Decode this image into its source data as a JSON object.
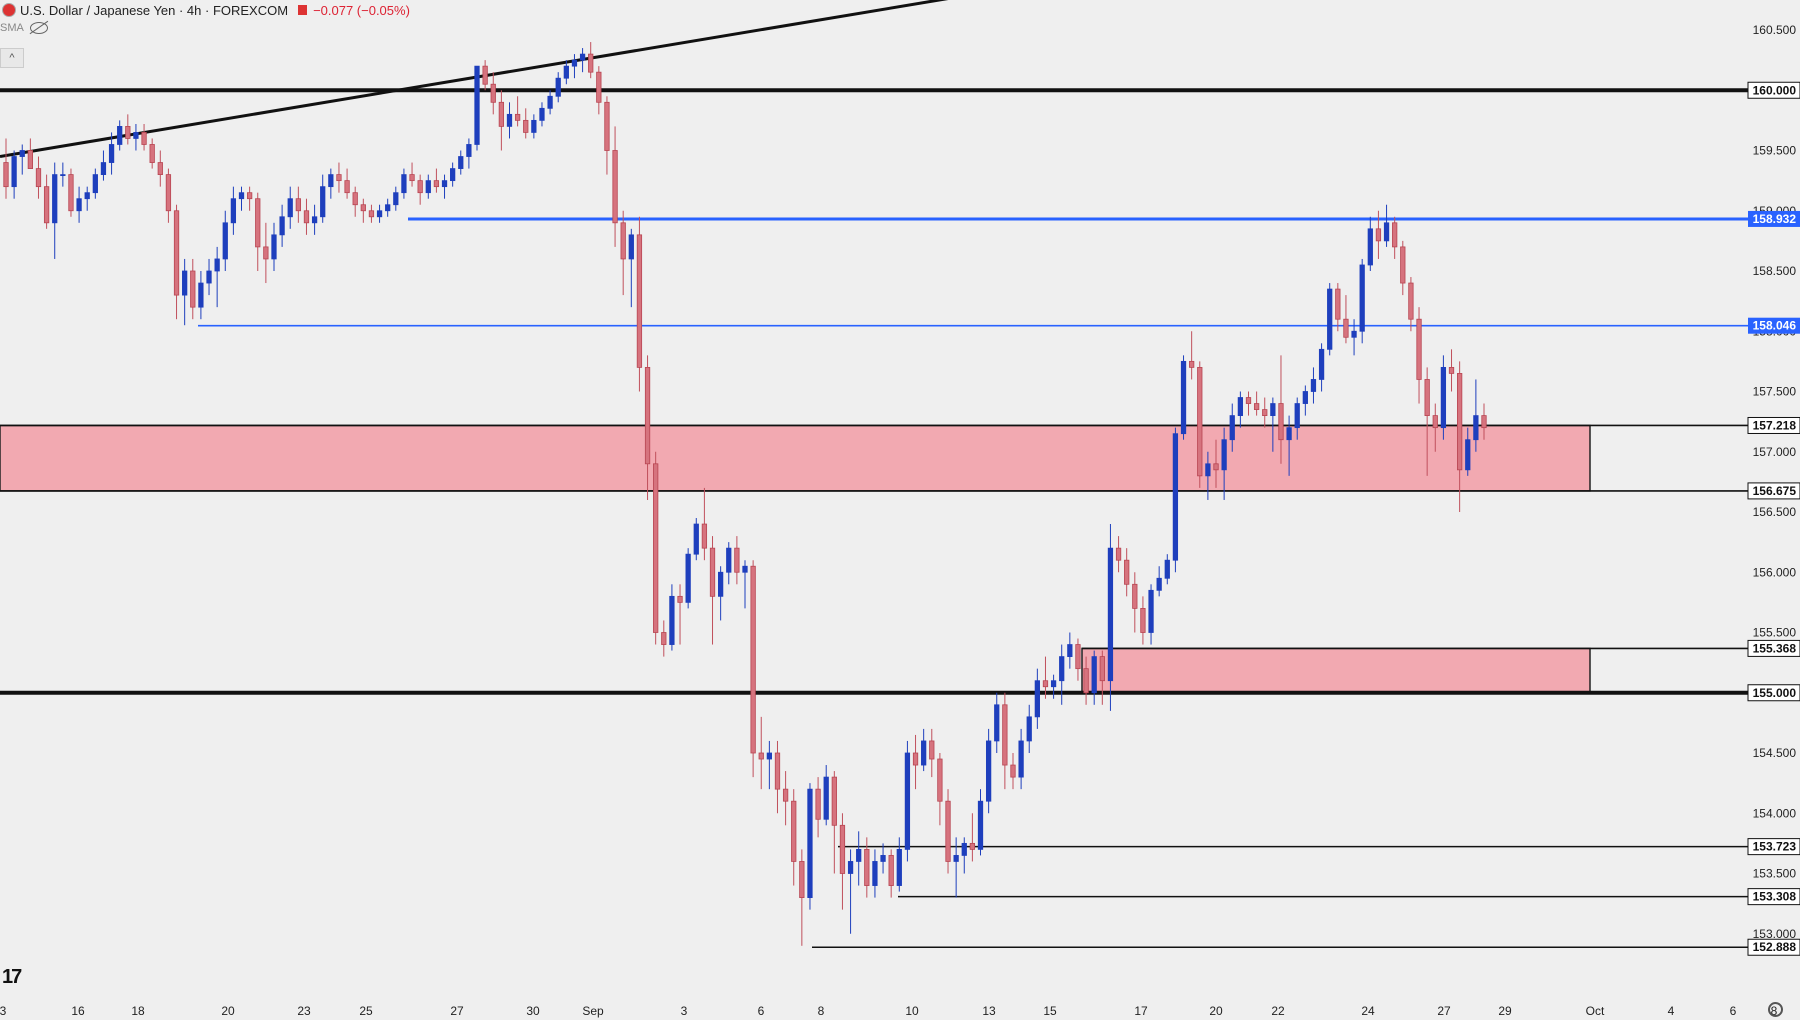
{
  "header": {
    "symbol_title": "U.S. Dollar / Japanese Yen · 4h · FOREXCOM",
    "change": "−0.077 (−0.05%)",
    "indicator": "SMA",
    "collapse_icon": "chevron-up-icon"
  },
  "colors": {
    "up": "#1e3fbd",
    "down": "#d6737e",
    "zone": "#f2a9b1",
    "blue_level": "#2962ff",
    "black_level": "#111111"
  },
  "chart_data": {
    "type": "candlestick",
    "title": "U.S. Dollar / Japanese Yen · 4h · FOREXCOM",
    "ylim": [
      152.6,
      160.8
    ],
    "price_axis_ticks": [
      "160.500",
      "160.000",
      "159.500",
      "159.000",
      "158.500",
      "158.000",
      "157.500",
      "157.000",
      "156.500",
      "156.000",
      "155.500",
      "155.000",
      "154.500",
      "154.000",
      "153.500",
      "153.000"
    ],
    "time_axis_labels": [
      "3",
      "16",
      "18",
      "20",
      "23",
      "25",
      "27",
      "30",
      "Sep",
      "3",
      "6",
      "8",
      "10",
      "13",
      "15",
      "17",
      "20",
      "22",
      "24",
      "27",
      "29",
      "Oct",
      "4",
      "6",
      "8"
    ],
    "levels": [
      {
        "price": 160.0,
        "label": "160.000",
        "style": "black"
      },
      {
        "price": 158.932,
        "label": "158.932",
        "style": "blue"
      },
      {
        "price": 158.046,
        "label": "158.046",
        "style": "blue"
      },
      {
        "price": 157.218,
        "label": "157.218",
        "style": "black"
      },
      {
        "price": 156.675,
        "label": "156.675",
        "style": "black"
      },
      {
        "price": 155.368,
        "label": "155.368",
        "style": "black"
      },
      {
        "price": 155.0,
        "label": "155.000",
        "style": "black"
      },
      {
        "price": 153.723,
        "label": "153.723",
        "style": "black"
      },
      {
        "price": 153.308,
        "label": "153.308",
        "style": "black"
      },
      {
        "price": 152.888,
        "label": "152.888",
        "style": "black"
      }
    ],
    "zones": [
      {
        "top": 157.218,
        "bottom": 156.675
      },
      {
        "top": 155.368,
        "bottom": 155.0
      }
    ],
    "trendline": {
      "from": 159.45,
      "to": 160.92
    },
    "candles": [
      [
        159.4,
        159.6,
        159.1,
        159.2
      ],
      [
        159.2,
        159.5,
        159.1,
        159.45
      ],
      [
        159.45,
        159.55,
        159.3,
        159.5
      ],
      [
        159.5,
        159.6,
        159.4,
        159.35
      ],
      [
        159.35,
        159.45,
        159.1,
        159.2
      ],
      [
        159.2,
        159.3,
        158.85,
        158.9
      ],
      [
        158.9,
        159.4,
        158.6,
        159.3
      ],
      [
        159.3,
        159.4,
        159.2,
        159.3
      ],
      [
        159.3,
        159.35,
        158.95,
        159.0
      ],
      [
        159.0,
        159.2,
        158.9,
        159.1
      ],
      [
        159.1,
        159.2,
        159.0,
        159.15
      ],
      [
        159.15,
        159.35,
        159.1,
        159.3
      ],
      [
        159.3,
        159.5,
        159.25,
        159.4
      ],
      [
        159.4,
        159.65,
        159.3,
        159.55
      ],
      [
        159.55,
        159.75,
        159.5,
        159.7
      ],
      [
        159.7,
        159.8,
        159.55,
        159.6
      ],
      [
        159.6,
        159.72,
        159.5,
        159.65
      ],
      [
        159.65,
        159.72,
        159.5,
        159.55
      ],
      [
        159.55,
        159.6,
        159.35,
        159.4
      ],
      [
        159.4,
        159.5,
        159.2,
        159.3
      ],
      [
        159.3,
        159.35,
        158.9,
        159.0
      ],
      [
        159.0,
        159.05,
        158.1,
        158.3
      ],
      [
        158.3,
        158.6,
        158.05,
        158.5
      ],
      [
        158.5,
        158.6,
        158.1,
        158.2
      ],
      [
        158.2,
        158.5,
        158.1,
        158.4
      ],
      [
        158.4,
        158.6,
        158.3,
        158.5
      ],
      [
        158.5,
        158.7,
        158.2,
        158.6
      ],
      [
        158.6,
        159.0,
        158.5,
        158.9
      ],
      [
        158.9,
        159.2,
        158.8,
        159.1
      ],
      [
        159.1,
        159.2,
        159.0,
        159.15
      ],
      [
        159.15,
        159.2,
        159.0,
        159.1
      ],
      [
        159.1,
        159.15,
        158.5,
        158.7
      ],
      [
        158.7,
        158.9,
        158.4,
        158.6
      ],
      [
        158.6,
        158.9,
        158.5,
        158.8
      ],
      [
        158.8,
        159.05,
        158.7,
        158.95
      ],
      [
        158.95,
        159.2,
        158.85,
        159.1
      ],
      [
        159.1,
        159.2,
        158.9,
        159.0
      ],
      [
        159.0,
        159.1,
        158.8,
        158.9
      ],
      [
        158.9,
        159.05,
        158.8,
        158.95
      ],
      [
        158.95,
        159.3,
        158.9,
        159.2
      ],
      [
        159.2,
        159.35,
        159.1,
        159.3
      ],
      [
        159.3,
        159.4,
        159.15,
        159.25
      ],
      [
        159.25,
        159.35,
        159.1,
        159.15
      ],
      [
        159.15,
        159.2,
        158.95,
        159.05
      ],
      [
        159.05,
        159.1,
        158.9,
        159.0
      ],
      [
        159.0,
        159.05,
        158.9,
        158.95
      ],
      [
        158.95,
        159.05,
        158.9,
        159.0
      ],
      [
        159.0,
        159.1,
        158.95,
        159.05
      ],
      [
        159.05,
        159.2,
        159.0,
        159.15
      ],
      [
        159.15,
        159.35,
        159.1,
        159.3
      ],
      [
        159.3,
        159.4,
        159.2,
        159.25
      ],
      [
        159.25,
        159.3,
        159.05,
        159.15
      ],
      [
        159.15,
        159.3,
        159.1,
        159.25
      ],
      [
        159.25,
        159.35,
        159.15,
        159.2
      ],
      [
        159.2,
        159.3,
        159.1,
        159.25
      ],
      [
        159.25,
        159.4,
        159.2,
        159.35
      ],
      [
        159.35,
        159.5,
        159.3,
        159.45
      ],
      [
        159.45,
        159.6,
        159.35,
        159.55
      ],
      [
        159.55,
        160.2,
        159.5,
        160.2
      ],
      [
        160.2,
        160.25,
        160.0,
        160.05
      ],
      [
        160.05,
        160.15,
        159.8,
        159.9
      ],
      [
        159.9,
        160.0,
        159.5,
        159.7
      ],
      [
        159.7,
        159.9,
        159.6,
        159.8
      ],
      [
        159.8,
        159.95,
        159.7,
        159.75
      ],
      [
        159.75,
        159.85,
        159.6,
        159.65
      ],
      [
        159.65,
        159.8,
        159.6,
        159.75
      ],
      [
        159.75,
        159.9,
        159.7,
        159.85
      ],
      [
        159.85,
        160.0,
        159.8,
        159.95
      ],
      [
        159.95,
        160.15,
        159.9,
        160.1
      ],
      [
        160.1,
        160.25,
        160.05,
        160.2
      ],
      [
        160.2,
        160.3,
        160.1,
        160.25
      ],
      [
        160.25,
        160.35,
        160.15,
        160.3
      ],
      [
        160.3,
        160.4,
        160.1,
        160.15
      ],
      [
        160.15,
        160.2,
        159.8,
        159.9
      ],
      [
        159.9,
        159.95,
        159.3,
        159.5
      ],
      [
        159.5,
        159.7,
        158.7,
        158.9
      ],
      [
        158.9,
        159.0,
        158.3,
        158.6
      ],
      [
        158.6,
        158.85,
        158.2,
        158.8
      ],
      [
        158.8,
        158.95,
        157.5,
        157.7
      ],
      [
        157.7,
        157.8,
        156.6,
        156.9
      ],
      [
        156.9,
        157.0,
        155.4,
        155.5
      ],
      [
        155.5,
        155.6,
        155.3,
        155.4
      ],
      [
        155.4,
        155.9,
        155.35,
        155.8
      ],
      [
        155.8,
        155.9,
        155.4,
        155.75
      ],
      [
        155.75,
        156.2,
        155.7,
        156.15
      ],
      [
        156.15,
        156.45,
        156.1,
        156.4
      ],
      [
        156.4,
        156.7,
        156.1,
        156.2
      ],
      [
        156.2,
        156.3,
        155.4,
        155.8
      ],
      [
        155.8,
        156.05,
        155.6,
        156.0
      ],
      [
        156.0,
        156.25,
        155.9,
        156.2
      ],
      [
        156.2,
        156.3,
        155.9,
        156.0
      ],
      [
        156.0,
        156.1,
        155.7,
        156.05
      ],
      [
        156.05,
        156.1,
        154.3,
        154.5
      ],
      [
        154.5,
        154.8,
        154.2,
        154.45
      ],
      [
        154.45,
        154.6,
        154.2,
        154.5
      ],
      [
        154.5,
        154.6,
        154.0,
        154.2
      ],
      [
        154.2,
        154.35,
        153.9,
        154.1
      ],
      [
        154.1,
        154.2,
        153.4,
        153.6
      ],
      [
        153.6,
        153.7,
        152.9,
        153.3
      ],
      [
        153.3,
        154.25,
        153.2,
        154.2
      ],
      [
        154.2,
        154.3,
        153.8,
        153.95
      ],
      [
        153.95,
        154.4,
        153.9,
        154.3
      ],
      [
        154.3,
        154.35,
        153.5,
        153.9
      ],
      [
        153.9,
        154.0,
        153.2,
        153.5
      ],
      [
        153.5,
        153.7,
        153.0,
        153.6
      ],
      [
        153.6,
        153.85,
        153.4,
        153.7
      ],
      [
        153.7,
        153.8,
        153.3,
        153.4
      ],
      [
        153.4,
        153.7,
        153.3,
        153.6
      ],
      [
        153.6,
        153.75,
        153.5,
        153.65
      ],
      [
        153.65,
        153.7,
        153.3,
        153.4
      ],
      [
        153.4,
        153.8,
        153.35,
        153.7
      ],
      [
        153.7,
        154.6,
        153.6,
        154.5
      ],
      [
        154.5,
        154.65,
        154.2,
        154.4
      ],
      [
        154.4,
        154.7,
        154.35,
        154.6
      ],
      [
        154.6,
        154.7,
        154.3,
        154.45
      ],
      [
        154.45,
        154.5,
        153.9,
        154.1
      ],
      [
        154.1,
        154.2,
        153.5,
        153.6
      ],
      [
        153.6,
        153.8,
        153.3,
        153.65
      ],
      [
        153.65,
        153.8,
        153.5,
        153.75
      ],
      [
        153.75,
        154.0,
        153.6,
        153.7
      ],
      [
        153.7,
        154.2,
        153.65,
        154.1
      ],
      [
        154.1,
        154.7,
        154.0,
        154.6
      ],
      [
        154.6,
        155.0,
        154.5,
        154.9
      ],
      [
        154.9,
        155.0,
        154.2,
        154.4
      ],
      [
        154.4,
        154.5,
        154.2,
        154.3
      ],
      [
        154.3,
        154.7,
        154.2,
        154.6
      ],
      [
        154.6,
        154.9,
        154.5,
        154.8
      ],
      [
        154.8,
        155.2,
        154.7,
        155.1
      ],
      [
        155.1,
        155.3,
        154.95,
        155.05
      ],
      [
        155.05,
        155.15,
        154.95,
        155.1
      ],
      [
        155.1,
        155.4,
        154.9,
        155.3
      ],
      [
        155.3,
        155.5,
        155.2,
        155.4
      ],
      [
        155.4,
        155.45,
        155.1,
        155.2
      ],
      [
        155.2,
        155.3,
        154.9,
        155.0
      ],
      [
        155.0,
        155.35,
        154.9,
        155.3
      ],
      [
        155.3,
        155.35,
        154.9,
        155.1
      ],
      [
        155.1,
        156.4,
        154.85,
        156.2
      ],
      [
        156.2,
        156.3,
        156.0,
        156.1
      ],
      [
        156.1,
        156.2,
        155.8,
        155.9
      ],
      [
        155.9,
        156.0,
        155.5,
        155.7
      ],
      [
        155.7,
        155.8,
        155.4,
        155.5
      ],
      [
        155.5,
        155.9,
        155.4,
        155.85
      ],
      [
        155.85,
        156.05,
        155.8,
        155.95
      ],
      [
        155.95,
        156.15,
        155.9,
        156.1
      ],
      [
        156.1,
        157.2,
        156.0,
        157.15
      ],
      [
        157.15,
        157.8,
        157.1,
        157.75
      ],
      [
        157.75,
        158.0,
        157.6,
        157.7
      ],
      [
        157.7,
        157.75,
        156.7,
        156.8
      ],
      [
        156.8,
        157.0,
        156.6,
        156.9
      ],
      [
        156.9,
        157.1,
        156.7,
        156.85
      ],
      [
        156.85,
        157.2,
        156.6,
        157.1
      ],
      [
        157.1,
        157.4,
        157.0,
        157.3
      ],
      [
        157.3,
        157.5,
        157.2,
        157.45
      ],
      [
        157.45,
        157.5,
        157.3,
        157.4
      ],
      [
        157.4,
        157.5,
        157.3,
        157.35
      ],
      [
        157.35,
        157.45,
        157.2,
        157.3
      ],
      [
        157.3,
        157.45,
        157.0,
        157.4
      ],
      [
        157.4,
        157.8,
        156.9,
        157.1
      ],
      [
        157.1,
        157.3,
        156.8,
        157.2
      ],
      [
        157.2,
        157.45,
        157.1,
        157.4
      ],
      [
        157.4,
        157.55,
        157.3,
        157.5
      ],
      [
        157.5,
        157.7,
        157.4,
        157.6
      ],
      [
        157.6,
        157.9,
        157.5,
        157.85
      ],
      [
        157.85,
        158.4,
        157.8,
        158.35
      ],
      [
        158.35,
        158.4,
        158.0,
        158.1
      ],
      [
        158.1,
        158.3,
        157.9,
        157.95
      ],
      [
        157.95,
        158.1,
        157.8,
        158.0
      ],
      [
        158.0,
        158.6,
        157.9,
        158.55
      ],
      [
        158.55,
        158.95,
        158.5,
        158.85
      ],
      [
        158.85,
        159.0,
        158.6,
        158.75
      ],
      [
        158.75,
        159.05,
        158.7,
        158.9
      ],
      [
        158.9,
        158.95,
        158.6,
        158.7
      ],
      [
        158.7,
        158.75,
        158.3,
        158.4
      ],
      [
        158.4,
        158.45,
        158.0,
        158.1
      ],
      [
        158.1,
        158.2,
        157.4,
        157.6
      ],
      [
        157.6,
        157.7,
        156.8,
        157.3
      ],
      [
        157.3,
        157.4,
        157.0,
        157.2
      ],
      [
        157.2,
        157.8,
        157.1,
        157.7
      ],
      [
        157.7,
        157.85,
        157.5,
        157.65
      ],
      [
        157.65,
        157.75,
        156.5,
        156.85
      ],
      [
        156.85,
        157.2,
        156.8,
        157.1
      ],
      [
        157.1,
        157.6,
        157.0,
        157.3
      ],
      [
        157.3,
        157.4,
        157.1,
        157.2
      ]
    ]
  }
}
